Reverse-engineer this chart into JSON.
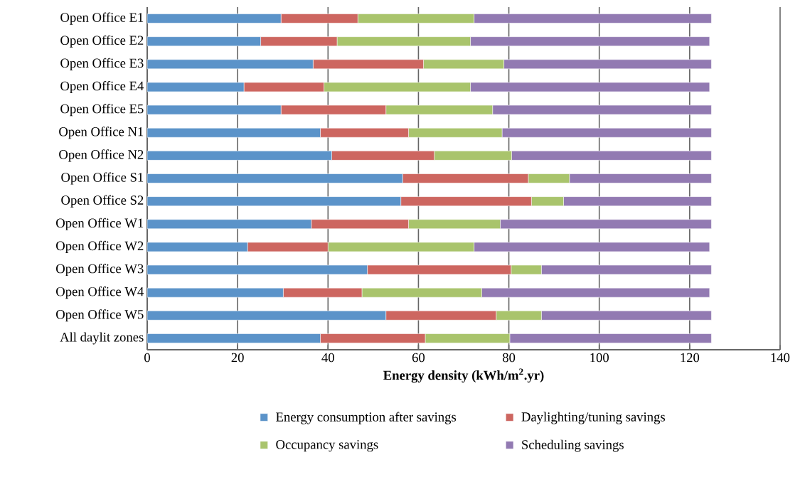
{
  "chart_data": {
    "type": "bar",
    "orientation": "horizontal",
    "stacked": true,
    "xlabel": "Energy density (kWh/m$^{2}$.yr)",
    "categories": [
      "Open Office E1",
      "Open Office E2",
      "Open Office E3",
      "Open Office E4",
      "Open Office E5",
      "Open Office N1",
      "Open Office N2",
      "Open Office S1",
      "Open Office S2",
      "Open Office W1",
      "Open Office W2",
      "Open Office W3",
      "Open Office W4",
      "Open Office W5",
      "All daylit zones"
    ],
    "series": [
      {
        "name": "Energy consumption after savings",
        "color": "#5b93c9",
        "values": [
          29.6,
          25.1,
          36.7,
          21.4,
          29.6,
          38.3,
          40.8,
          56.5,
          56.1,
          36.3,
          22.2,
          48.7,
          30.1,
          52.8,
          38.3
        ]
      },
      {
        "name": "Daylighting/tuning savings",
        "color": "#cd6660",
        "values": [
          17.0,
          16.9,
          24.4,
          17.7,
          23.2,
          19.5,
          22.7,
          27.8,
          28.9,
          21.5,
          17.8,
          31.8,
          17.4,
          24.4,
          23.2
        ]
      },
      {
        "name": "Occupancy savings",
        "color": "#a9c46c",
        "values": [
          25.7,
          29.5,
          17.8,
          32.4,
          23.6,
          20.7,
          17.1,
          9.1,
          7.1,
          20.3,
          32.3,
          6.7,
          26.5,
          10.0,
          18.7
        ]
      },
      {
        "name": "Scheduling savings",
        "color": "#927ab2",
        "values": [
          52.5,
          52.9,
          45.9,
          52.9,
          48.4,
          46.3,
          44.2,
          31.4,
          32.7,
          46.7,
          52.1,
          37.6,
          50.4,
          37.6,
          44.6
        ]
      }
    ],
    "xlim": [
      0,
      140
    ],
    "xticks": [
      0,
      20,
      40,
      60,
      80,
      100,
      120,
      140
    ],
    "grid": "x",
    "legend": "bottom"
  }
}
